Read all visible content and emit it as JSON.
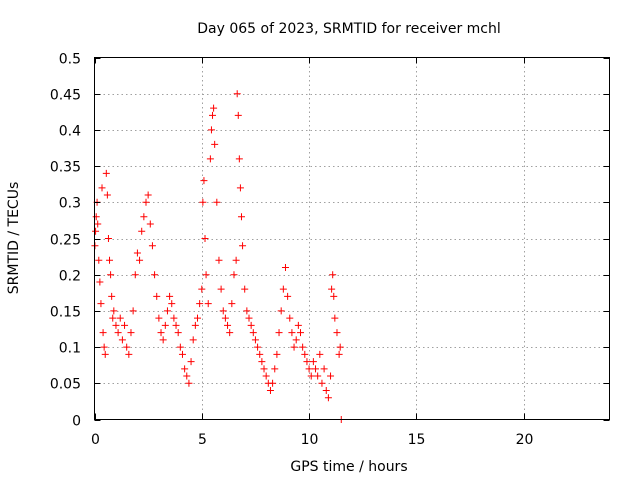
{
  "chart_data": {
    "type": "scatter",
    "title": "Day 065 of 2023, SRMTID for receiver mchl",
    "xlabel": "GPS time / hours",
    "ylabel": "SRMTID / TECUs",
    "xlim": [
      0,
      24
    ],
    "ylim": [
      0,
      0.5
    ],
    "xticks": [
      0,
      5,
      10,
      15,
      20
    ],
    "xtick_labels": [
      "0",
      "5",
      "10",
      "15",
      "20"
    ],
    "yticks": [
      0,
      0.05,
      0.1,
      0.15,
      0.2,
      0.25,
      0.3,
      0.35,
      0.4,
      0.45,
      0.5
    ],
    "ytick_labels": [
      "0",
      "0.05",
      "0.1",
      "0.15",
      "0.2",
      "0.25",
      "0.3",
      "0.35",
      "0.4",
      "0.45",
      "0.5"
    ],
    "grid": true,
    "marker": "+",
    "color": "#ff0000",
    "series": [
      {
        "name": "SRMTID",
        "points": [
          [
            0.02,
            0.24
          ],
          [
            0.05,
            0.26
          ],
          [
            0.08,
            0.28
          ],
          [
            0.12,
            0.3
          ],
          [
            0.15,
            0.27
          ],
          [
            0.2,
            0.22
          ],
          [
            0.25,
            0.19
          ],
          [
            0.3,
            0.16
          ],
          [
            0.35,
            0.32
          ],
          [
            0.4,
            0.12
          ],
          [
            0.45,
            0.1
          ],
          [
            0.5,
            0.09
          ],
          [
            0.55,
            0.34
          ],
          [
            0.6,
            0.31
          ],
          [
            0.65,
            0.25
          ],
          [
            0.7,
            0.22
          ],
          [
            0.75,
            0.2
          ],
          [
            0.8,
            0.17
          ],
          [
            0.85,
            0.14
          ],
          [
            0.9,
            0.15
          ],
          [
            1.0,
            0.13
          ],
          [
            1.1,
            0.12
          ],
          [
            1.2,
            0.14
          ],
          [
            1.3,
            0.11
          ],
          [
            1.4,
            0.13
          ],
          [
            1.5,
            0.1
          ],
          [
            1.6,
            0.09
          ],
          [
            1.7,
            0.12
          ],
          [
            1.8,
            0.15
          ],
          [
            1.9,
            0.2
          ],
          [
            2.0,
            0.23
          ],
          [
            2.1,
            0.22
          ],
          [
            2.2,
            0.26
          ],
          [
            2.3,
            0.28
          ],
          [
            2.4,
            0.3
          ],
          [
            2.5,
            0.31
          ],
          [
            2.6,
            0.27
          ],
          [
            2.7,
            0.24
          ],
          [
            2.8,
            0.2
          ],
          [
            2.9,
            0.17
          ],
          [
            3.0,
            0.14
          ],
          [
            3.1,
            0.12
          ],
          [
            3.2,
            0.11
          ],
          [
            3.3,
            0.13
          ],
          [
            3.4,
            0.15
          ],
          [
            3.5,
            0.17
          ],
          [
            3.6,
            0.16
          ],
          [
            3.7,
            0.14
          ],
          [
            3.8,
            0.13
          ],
          [
            3.9,
            0.12
          ],
          [
            4.0,
            0.1
          ],
          [
            4.1,
            0.09
          ],
          [
            4.2,
            0.07
          ],
          [
            4.3,
            0.06
          ],
          [
            4.4,
            0.05
          ],
          [
            4.5,
            0.08
          ],
          [
            4.6,
            0.11
          ],
          [
            4.7,
            0.13
          ],
          [
            4.8,
            0.14
          ],
          [
            4.9,
            0.16
          ],
          [
            5.0,
            0.18
          ],
          [
            5.05,
            0.3
          ],
          [
            5.1,
            0.33
          ],
          [
            5.15,
            0.25
          ],
          [
            5.2,
            0.2
          ],
          [
            5.3,
            0.16
          ],
          [
            5.4,
            0.36
          ],
          [
            5.45,
            0.4
          ],
          [
            5.5,
            0.42
          ],
          [
            5.55,
            0.43
          ],
          [
            5.6,
            0.38
          ],
          [
            5.7,
            0.3
          ],
          [
            5.8,
            0.22
          ],
          [
            5.9,
            0.18
          ],
          [
            6.0,
            0.15
          ],
          [
            6.1,
            0.14
          ],
          [
            6.2,
            0.13
          ],
          [
            6.3,
            0.12
          ],
          [
            6.4,
            0.16
          ],
          [
            6.5,
            0.2
          ],
          [
            6.6,
            0.22
          ],
          [
            6.65,
            0.45
          ],
          [
            6.7,
            0.42
          ],
          [
            6.75,
            0.36
          ],
          [
            6.8,
            0.32
          ],
          [
            6.85,
            0.28
          ],
          [
            6.9,
            0.24
          ],
          [
            7.0,
            0.18
          ],
          [
            7.1,
            0.15
          ],
          [
            7.2,
            0.14
          ],
          [
            7.3,
            0.13
          ],
          [
            7.4,
            0.12
          ],
          [
            7.5,
            0.11
          ],
          [
            7.6,
            0.1
          ],
          [
            7.7,
            0.09
          ],
          [
            7.8,
            0.08
          ],
          [
            7.9,
            0.07
          ],
          [
            8.0,
            0.06
          ],
          [
            8.1,
            0.05
          ],
          [
            8.2,
            0.04
          ],
          [
            8.3,
            0.05
          ],
          [
            8.4,
            0.07
          ],
          [
            8.5,
            0.09
          ],
          [
            8.6,
            0.12
          ],
          [
            8.7,
            0.15
          ],
          [
            8.8,
            0.18
          ],
          [
            8.9,
            0.21
          ],
          [
            9.0,
            0.17
          ],
          [
            9.1,
            0.14
          ],
          [
            9.2,
            0.12
          ],
          [
            9.3,
            0.1
          ],
          [
            9.4,
            0.11
          ],
          [
            9.5,
            0.13
          ],
          [
            9.6,
            0.12
          ],
          [
            9.7,
            0.1
          ],
          [
            9.8,
            0.09
          ],
          [
            9.9,
            0.08
          ],
          [
            10.0,
            0.07
          ],
          [
            10.1,
            0.06
          ],
          [
            10.2,
            0.08
          ],
          [
            10.3,
            0.07
          ],
          [
            10.4,
            0.06
          ],
          [
            10.5,
            0.09
          ],
          [
            10.6,
            0.05
          ],
          [
            10.7,
            0.07
          ],
          [
            10.8,
            0.04
          ],
          [
            10.9,
            0.03
          ],
          [
            11.0,
            0.06
          ],
          [
            11.05,
            0.18
          ],
          [
            11.1,
            0.2
          ],
          [
            11.15,
            0.17
          ],
          [
            11.2,
            0.14
          ],
          [
            11.3,
            0.12
          ],
          [
            11.4,
            0.09
          ],
          [
            11.45,
            0.1
          ],
          [
            11.5,
            0.0
          ]
        ]
      }
    ]
  }
}
